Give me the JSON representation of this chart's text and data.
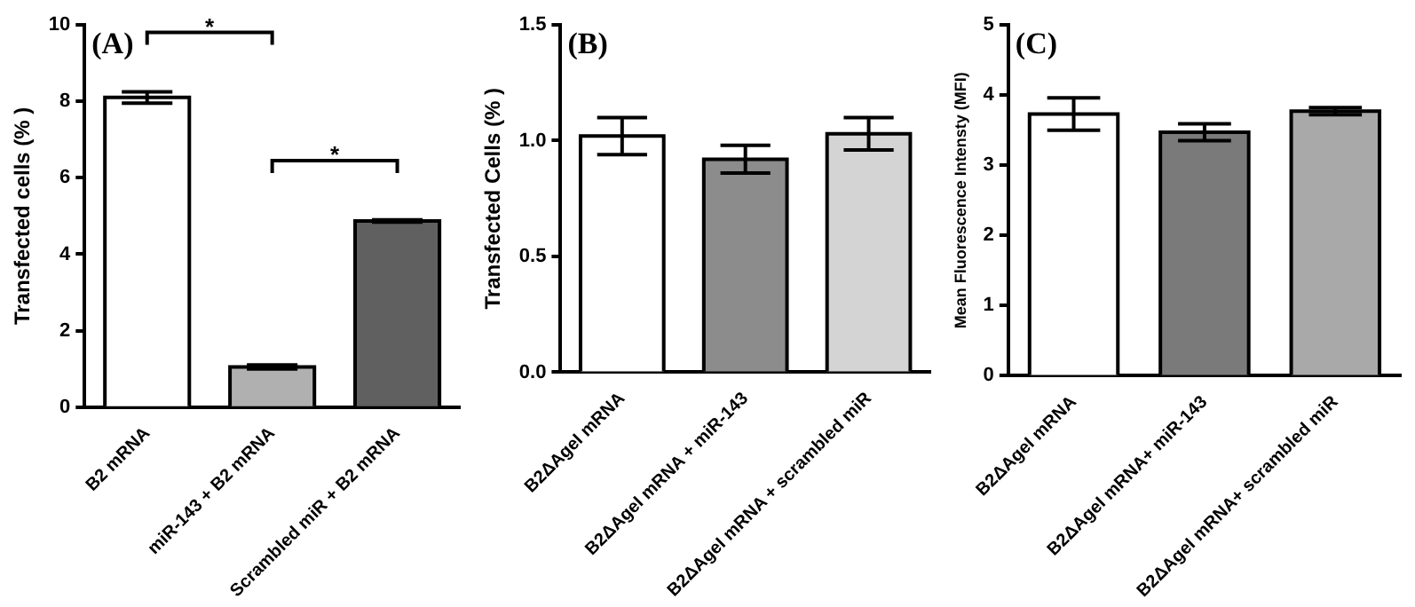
{
  "chart_data": [
    {
      "type": "bar",
      "title": "(A)",
      "ylabel": "Transfected cells (% )",
      "categories": [
        "B2 mRNA",
        "miR-143 + B2 mRNA",
        "Scrambled miR + B2 mRNA"
      ],
      "values": [
        8.1,
        1.05,
        4.87
      ],
      "errors": [
        0.15,
        0.05,
        0.03
      ],
      "colors": [
        "#ffffff",
        "#b0b0b0",
        "#606060"
      ],
      "ylim": [
        0,
        10
      ],
      "yticks": [
        0,
        2,
        4,
        6,
        8,
        10
      ],
      "grid": false,
      "legend": false,
      "annotations": [
        "*",
        "*"
      ]
    },
    {
      "type": "bar",
      "title": "(B)",
      "ylabel": "Transfected Cells (% )",
      "categories": [
        "B2ΔAgeI mRNA",
        "B2ΔAgeI mRNA + miR-143",
        "B2ΔAgeI mRNA + scrambled miR"
      ],
      "values": [
        1.02,
        0.92,
        1.03
      ],
      "errors": [
        0.08,
        0.06,
        0.07
      ],
      "colors": [
        "#ffffff",
        "#8c8c8c",
        "#d4d4d4"
      ],
      "ylim": [
        0,
        1.5
      ],
      "yticks": [
        {
          "value": 0,
          "label": "0.0"
        },
        0.5,
        {
          "value": 1,
          "label": "1.0"
        },
        1.5
      ],
      "grid": false,
      "legend": false
    },
    {
      "type": "bar",
      "title": "(C)",
      "ylabel": "Mean Fluorescence Intensty (MFI)",
      "categories": [
        "B2ΔAgeI mRNA",
        "B2ΔAgeI mRNA+ miR-143",
        "B2ΔAgeI mRNA+ scrambled miR"
      ],
      "values": [
        3.73,
        3.47,
        3.77
      ],
      "errors": [
        0.23,
        0.12,
        0.05
      ],
      "colors": [
        "#ffffff",
        "#7a7a7a",
        "#a9a9a9"
      ],
      "ylim": [
        0,
        5
      ],
      "yticks": [
        0,
        1,
        2,
        3,
        4,
        5
      ],
      "grid": false,
      "legend": false
    }
  ]
}
